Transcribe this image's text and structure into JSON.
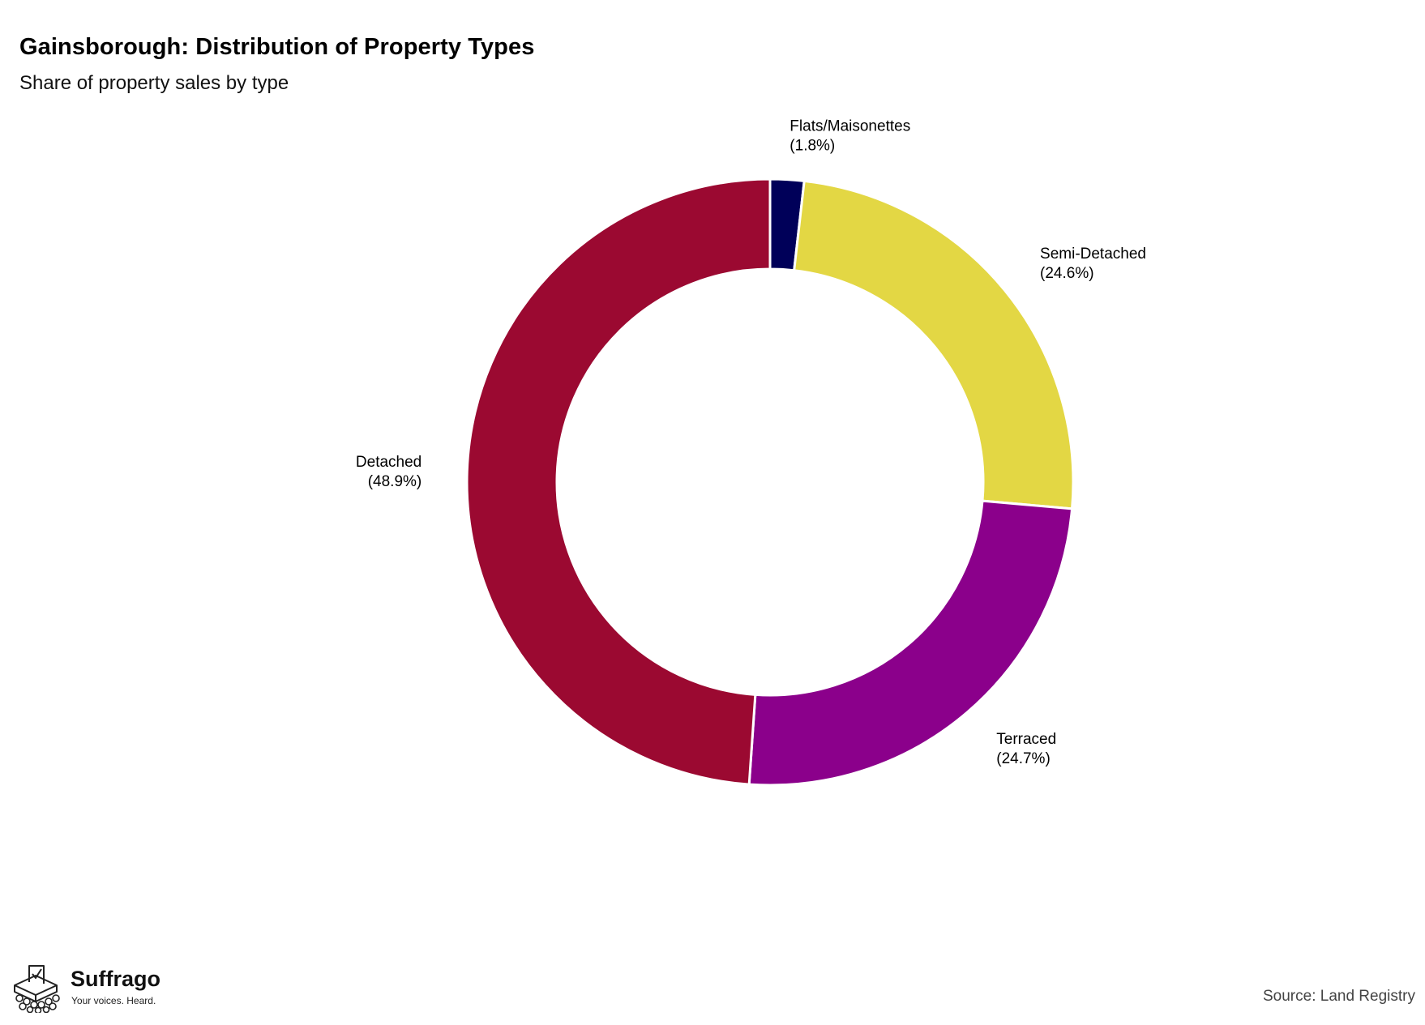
{
  "header": {
    "title": "Gainsborough: Distribution of Property Types",
    "subtitle": "Share of property sales by type"
  },
  "chart_data": {
    "type": "pie",
    "variant": "donut",
    "slices": [
      {
        "label": "Flats/Maisonettes",
        "value": 1.8,
        "display": "(1.8%)",
        "color": "#000059"
      },
      {
        "label": "Semi-Detached",
        "value": 24.6,
        "display": "(24.6%)",
        "color": "#e3d744"
      },
      {
        "label": "Terraced",
        "value": 24.7,
        "display": "(24.7%)",
        "color": "#8b008b"
      },
      {
        "label": "Detached",
        "value": 48.9,
        "display": "(48.9%)",
        "color": "#9b0931"
      }
    ],
    "start_angle_deg": 0,
    "direction": "clockwise",
    "legend": "none"
  },
  "footer": {
    "brand_name": "Suffrago",
    "brand_tagline": "Your voices. Heard.",
    "source": "Source: Land Registry"
  },
  "icons": {
    "logo": "ballot-box-icon"
  }
}
